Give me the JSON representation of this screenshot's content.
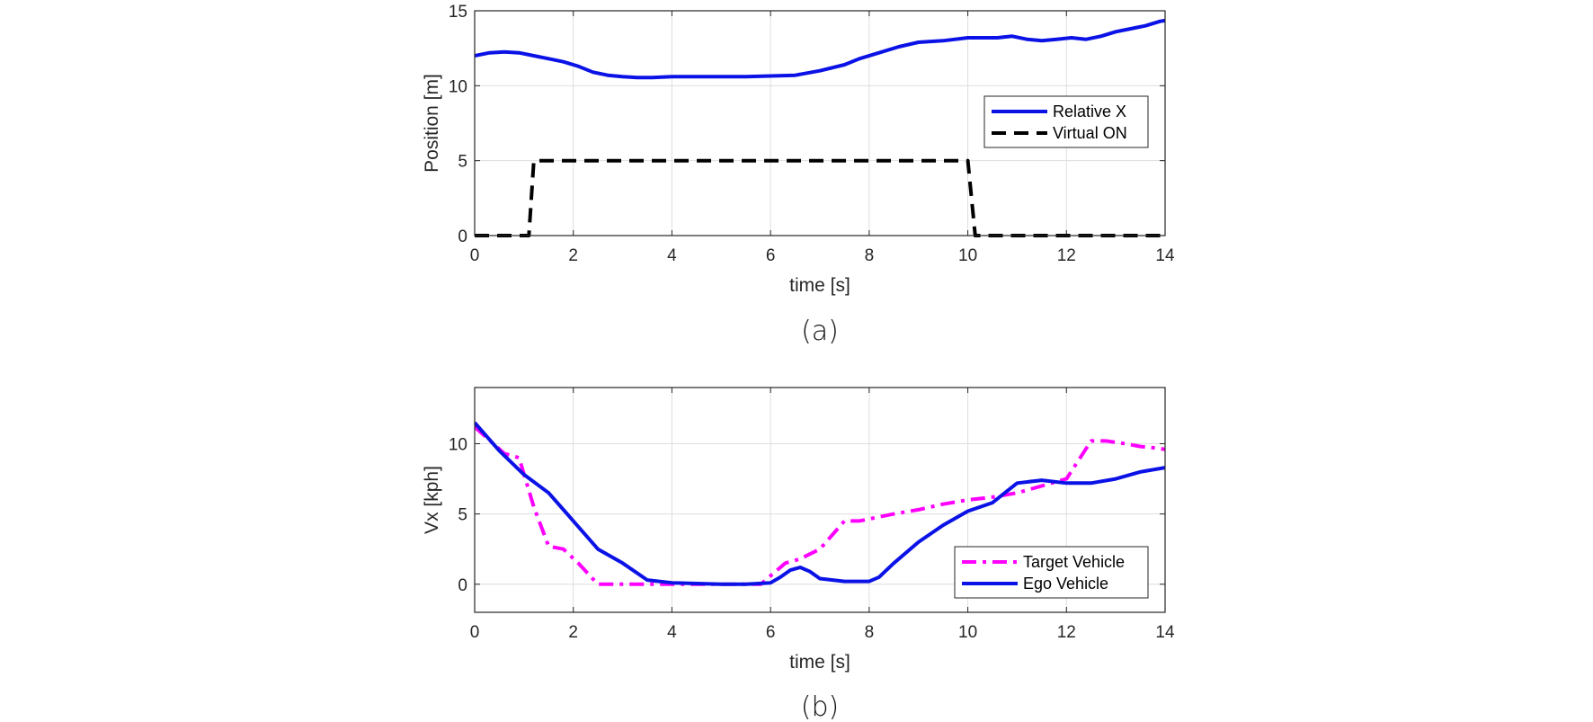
{
  "chart_data": [
    {
      "type": "line",
      "caption": "(a)",
      "xlabel": "time [s]",
      "ylabel": "Position [m]",
      "xlim": [
        0,
        14
      ],
      "ylim": [
        0,
        15
      ],
      "xticks": [
        0,
        2,
        4,
        6,
        8,
        10,
        12,
        14
      ],
      "yticks": [
        0,
        5,
        10,
        15
      ],
      "grid": true,
      "legend_position": "right",
      "series": [
        {
          "name": "Relative X",
          "color": "#0b12e6",
          "style": "solid",
          "x": [
            0,
            0.3,
            0.6,
            0.9,
            1.2,
            1.5,
            1.8,
            2.1,
            2.4,
            2.7,
            3.0,
            3.3,
            3.6,
            4.0,
            4.5,
            5.0,
            5.5,
            6.0,
            6.5,
            7.0,
            7.5,
            7.8,
            8.2,
            8.6,
            9.0,
            9.5,
            10.0,
            10.3,
            10.6,
            10.9,
            11.2,
            11.5,
            11.8,
            12.1,
            12.4,
            12.7,
            13.0,
            13.3,
            13.6,
            13.9,
            14.0
          ],
          "y": [
            12.0,
            12.2,
            12.25,
            12.2,
            12.0,
            11.8,
            11.6,
            11.3,
            10.9,
            10.7,
            10.6,
            10.55,
            10.55,
            10.6,
            10.6,
            10.6,
            10.6,
            10.65,
            10.7,
            11.0,
            11.4,
            11.8,
            12.2,
            12.6,
            12.9,
            13.0,
            13.2,
            13.2,
            13.2,
            13.3,
            13.1,
            13.0,
            13.1,
            13.2,
            13.1,
            13.3,
            13.6,
            13.8,
            14.0,
            14.3,
            14.35
          ]
        },
        {
          "name": "Virtual ON",
          "color": "#000000",
          "style": "dashed",
          "x": [
            0,
            1.1,
            1.2,
            10.0,
            10.15,
            14.0
          ],
          "y": [
            0,
            0,
            5,
            5,
            0,
            0
          ]
        }
      ]
    },
    {
      "type": "line",
      "caption": "(b)",
      "xlabel": "time [s]",
      "ylabel": "Vx [kph]",
      "xlim": [
        0,
        14
      ],
      "ylim": [
        -2,
        14
      ],
      "xticks": [
        0,
        2,
        4,
        6,
        8,
        10,
        12,
        14
      ],
      "yticks": [
        0,
        5,
        10
      ],
      "grid": true,
      "legend_position": "bottom-right",
      "series": [
        {
          "name": "Target Vehicle",
          "color": "#ff00ff",
          "style": "dashdot",
          "x": [
            0,
            0.6,
            0.9,
            1.2,
            1.5,
            1.8,
            2.1,
            2.5,
            3.0,
            4.0,
            5.0,
            5.8,
            6.3,
            6.6,
            7.0,
            7.5,
            7.8,
            8.5,
            9.0,
            9.5,
            10.0,
            10.5,
            11.0,
            11.5,
            12.0,
            12.5,
            12.8,
            13.2,
            13.5,
            13.8,
            14.0
          ],
          "y": [
            11.2,
            9.3,
            9.0,
            5.5,
            2.7,
            2.5,
            1.5,
            0.0,
            0.0,
            0.0,
            0.0,
            0.0,
            1.5,
            1.8,
            2.5,
            4.5,
            4.5,
            5.0,
            5.3,
            5.7,
            6.0,
            6.2,
            6.5,
            7.0,
            7.5,
            10.2,
            10.2,
            10.0,
            9.8,
            9.7,
            9.6
          ]
        },
        {
          "name": "Ego Vehicle",
          "color": "#0b12e6",
          "style": "solid",
          "x": [
            0,
            0.5,
            1.0,
            1.5,
            2.0,
            2.5,
            3.0,
            3.5,
            4.0,
            5.0,
            5.5,
            6.0,
            6.2,
            6.4,
            6.6,
            6.8,
            7.0,
            7.5,
            8.0,
            8.2,
            8.5,
            9.0,
            9.5,
            10.0,
            10.5,
            11.0,
            11.5,
            12.0,
            12.5,
            13.0,
            13.5,
            14.0
          ],
          "y": [
            11.5,
            9.5,
            7.8,
            6.5,
            4.5,
            2.5,
            1.5,
            0.3,
            0.1,
            0.0,
            0.0,
            0.1,
            0.5,
            1.0,
            1.2,
            0.9,
            0.4,
            0.2,
            0.2,
            0.5,
            1.5,
            3.0,
            4.2,
            5.2,
            5.8,
            7.2,
            7.4,
            7.2,
            7.2,
            7.5,
            8.0,
            8.3
          ]
        }
      ]
    }
  ]
}
